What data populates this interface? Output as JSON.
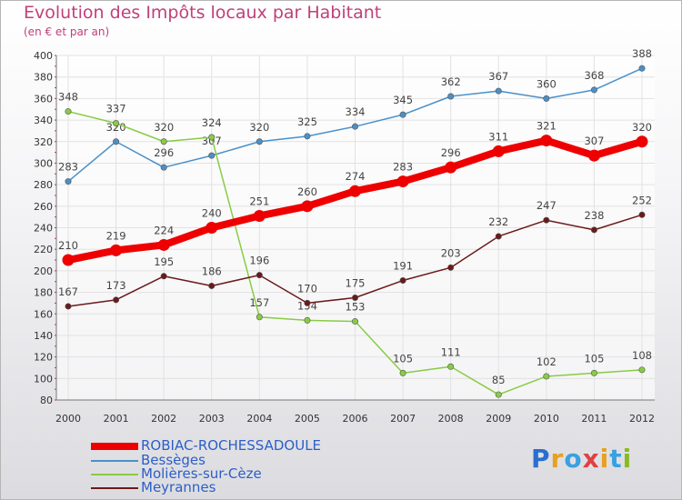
{
  "title": "Evolution des Impôts locaux par Habitant",
  "subtitle": "(en € et par an)",
  "logo": "Proxiti",
  "chart_data": {
    "type": "line",
    "x": [
      2000,
      2001,
      2002,
      2003,
      2004,
      2005,
      2006,
      2007,
      2008,
      2009,
      2010,
      2011,
      2012
    ],
    "ylim": [
      80,
      400
    ],
    "yticks": [
      80,
      100,
      120,
      140,
      160,
      180,
      200,
      220,
      240,
      260,
      280,
      300,
      320,
      340,
      360,
      380,
      400
    ],
    "grid": true,
    "legend_placement": "bottom-left",
    "series": [
      {
        "name": "ROBIAC-ROCHESSADOULE",
        "color": "#ee0000",
        "values": [
          210,
          219,
          224,
          240,
          251,
          260,
          274,
          283,
          296,
          311,
          321,
          307,
          320
        ]
      },
      {
        "name": "Bessèges",
        "color": "#4a90c8",
        "values": [
          283,
          320,
          296,
          307,
          320,
          325,
          334,
          345,
          362,
          367,
          360,
          368,
          388
        ]
      },
      {
        "name": "Molières-sur-Cèze",
        "color": "#88cc44",
        "values": [
          348,
          337,
          320,
          324,
          157,
          154,
          153,
          105,
          111,
          85,
          102,
          105,
          108
        ]
      },
      {
        "name": "Meyrannes",
        "color": "#6b1a1a",
        "values": [
          167,
          173,
          195,
          186,
          196,
          170,
          175,
          191,
          203,
          232,
          247,
          238,
          252
        ]
      }
    ]
  }
}
